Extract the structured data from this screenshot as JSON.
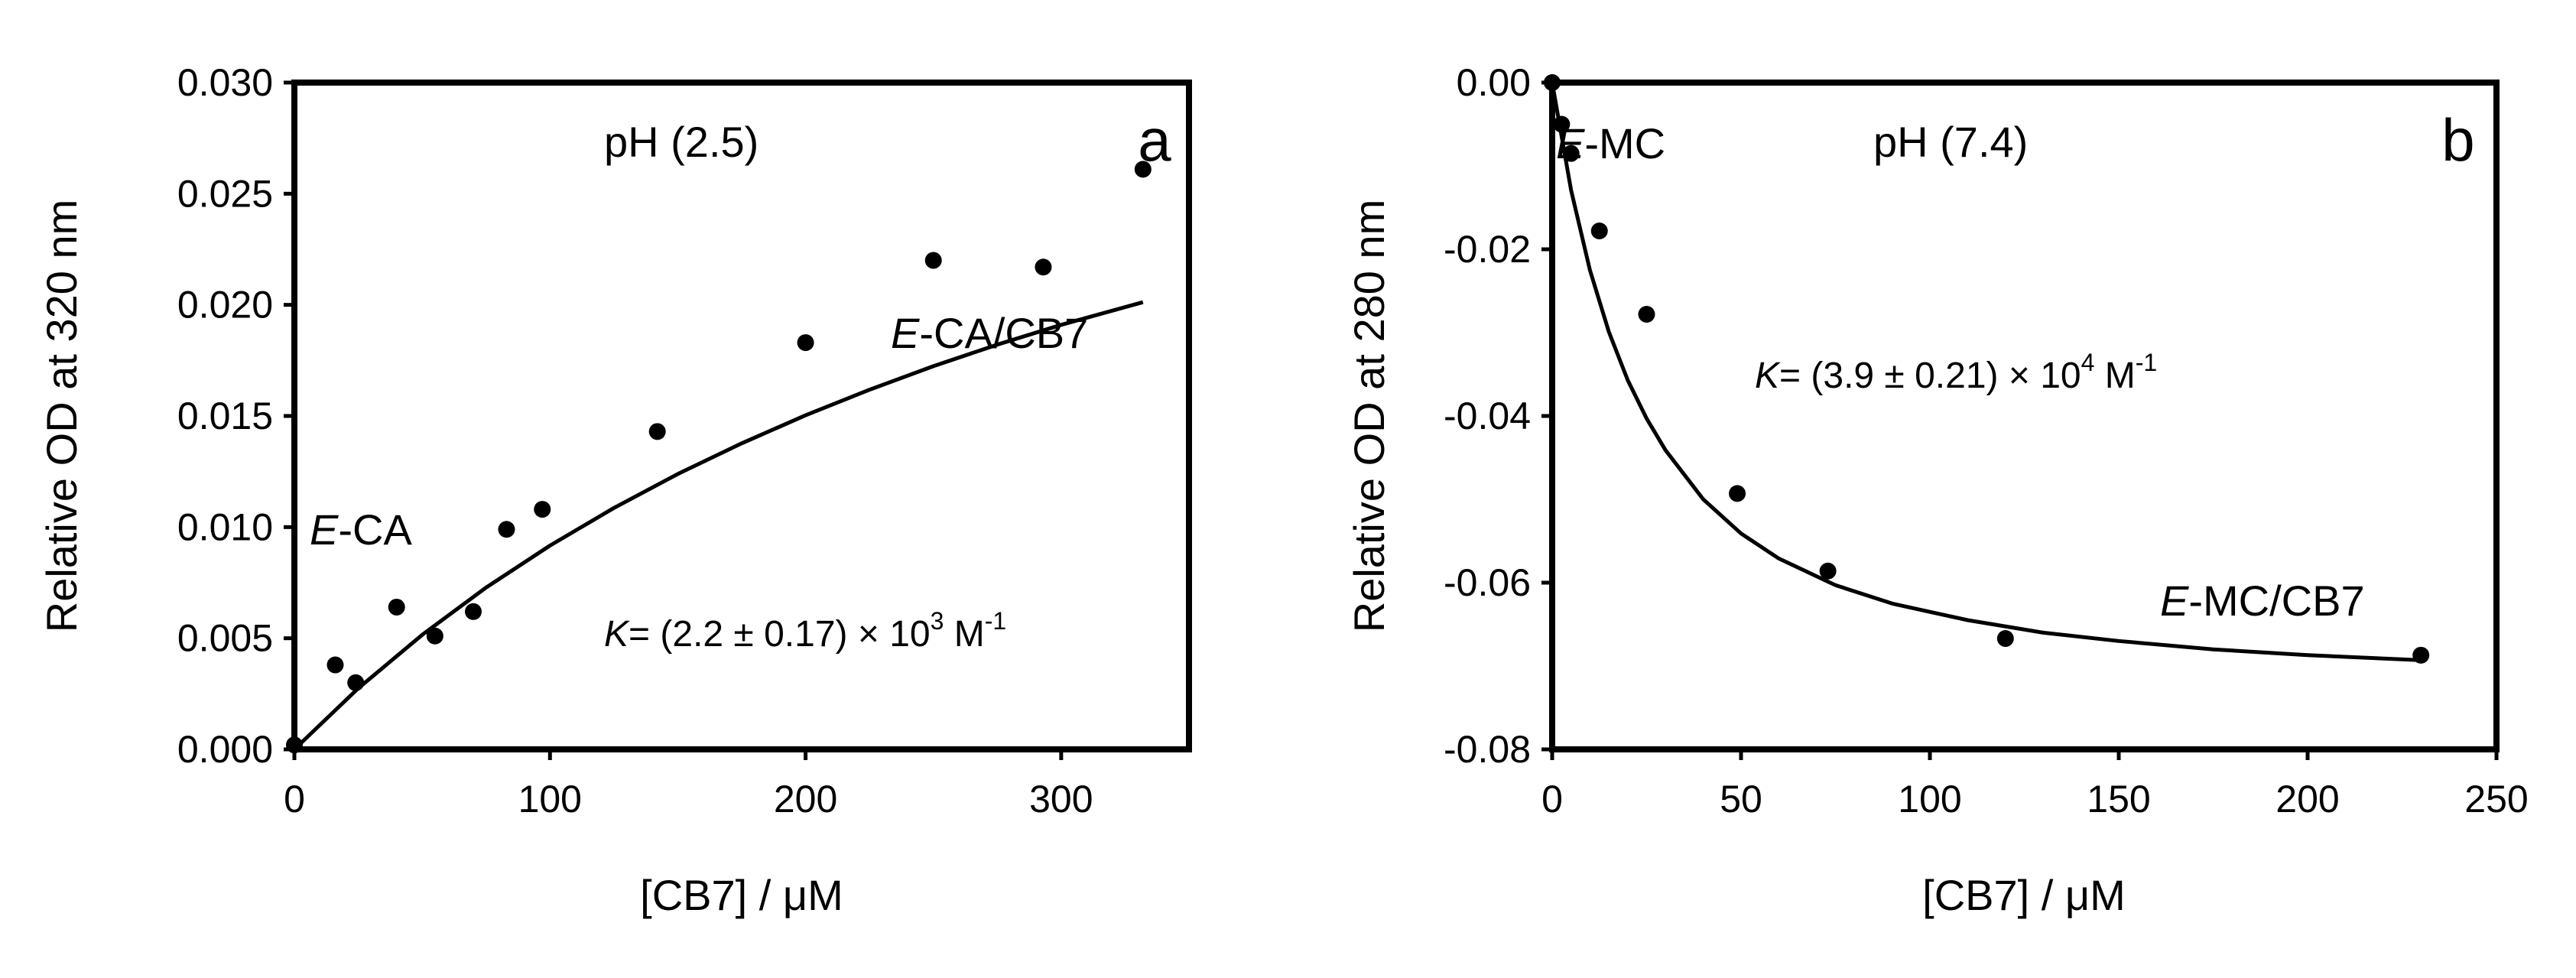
{
  "chart_data": [
    {
      "type": "scatter",
      "panel_label": "a",
      "condition": "pH (2.5)",
      "xlabel": "[CB7] / μM",
      "ylabel": "Relative OD at 320 nm",
      "xlim": [
        0,
        350
      ],
      "ylim": [
        0,
        0.03
      ],
      "xticks": [
        0,
        100,
        200,
        300
      ],
      "xtick_labels": [
        "0",
        "100",
        "200",
        "300"
      ],
      "yticks": [
        0,
        0.005,
        0.01,
        0.015,
        0.02,
        0.025,
        0.03
      ],
      "ytick_labels": [
        "0.000",
        "0.005",
        "0.010",
        "0.015",
        "0.020",
        "0.025",
        "0.030"
      ],
      "series": [
        {
          "name": "data",
          "x": [
            0,
            16,
            24,
            40,
            55,
            70,
            83,
            97,
            142,
            200,
            250,
            293,
            332
          ],
          "y": [
            0.0002,
            0.0038,
            0.003,
            0.0064,
            0.0051,
            0.0062,
            0.0099,
            0.0108,
            0.0143,
            0.0183,
            0.022,
            0.0217,
            0.0261
          ]
        },
        {
          "name": "fit",
          "style": "line",
          "x": [
            0,
            25,
            50,
            75,
            100,
            125,
            150,
            175,
            200,
            225,
            250,
            275,
            300,
            332
          ],
          "y": [
            0,
            0.00275,
            0.00515,
            0.00728,
            0.00917,
            0.01086,
            0.01239,
            0.01377,
            0.01503,
            0.01618,
            0.01724,
            0.01821,
            0.0191,
            0.02012
          ]
        }
      ],
      "annotations": {
        "free": {
          "italic": "E",
          "rest": "-CA"
        },
        "complex": {
          "italic": "E",
          "rest": "-CA/CB7"
        },
        "binding_constant": {
          "symbol": "K",
          "body": "= (2.2 ± 0.17) × 10",
          "exp": "3",
          "unit": " M",
          "unit_exp": "-1"
        }
      }
    },
    {
      "type": "scatter",
      "panel_label": "b",
      "condition": "pH (7.4)",
      "xlabel": "[CB7] / μM",
      "ylabel": "Relative OD at 280 nm",
      "xlim": [
        0,
        250
      ],
      "ylim": [
        -0.08,
        0
      ],
      "xticks": [
        0,
        50,
        100,
        150,
        200,
        250
      ],
      "xtick_labels": [
        "0",
        "50",
        "100",
        "150",
        "200",
        "250"
      ],
      "yticks": [
        0,
        -0.02,
        -0.04,
        -0.06,
        -0.08
      ],
      "ytick_labels": [
        "0.00",
        "-0.02",
        "-0.04",
        "-0.06",
        "-0.08"
      ],
      "series": [
        {
          "name": "data",
          "x": [
            0,
            2.5,
            5,
            12.5,
            25,
            49,
            73,
            120,
            230
          ],
          "y": [
            0,
            -0.005,
            -0.0085,
            -0.0178,
            -0.0278,
            -0.0493,
            -0.0586,
            -0.0667,
            -0.0687
          ]
        },
        {
          "name": "fit",
          "style": "line",
          "x": [
            0,
            5,
            10,
            15,
            20,
            25,
            30,
            40,
            50,
            60,
            75,
            90,
            110,
            130,
            150,
            175,
            200,
            230
          ],
          "y": [
            0,
            -0.0129,
            -0.0225,
            -0.0299,
            -0.0357,
            -0.0403,
            -0.0441,
            -0.05,
            -0.0541,
            -0.0571,
            -0.0603,
            -0.0625,
            -0.0645,
            -0.066,
            -0.067,
            -0.068,
            -0.0687,
            -0.0693
          ]
        }
      ],
      "annotations": {
        "free": {
          "italic": "E",
          "rest": "-MC"
        },
        "complex": {
          "italic": "E",
          "rest": "-MC/CB7"
        },
        "binding_constant": {
          "symbol": "K",
          "body": "= (3.9 ± 0.21) × 10",
          "exp": "4",
          "unit": " M",
          "unit_exp": "-1"
        }
      }
    }
  ]
}
